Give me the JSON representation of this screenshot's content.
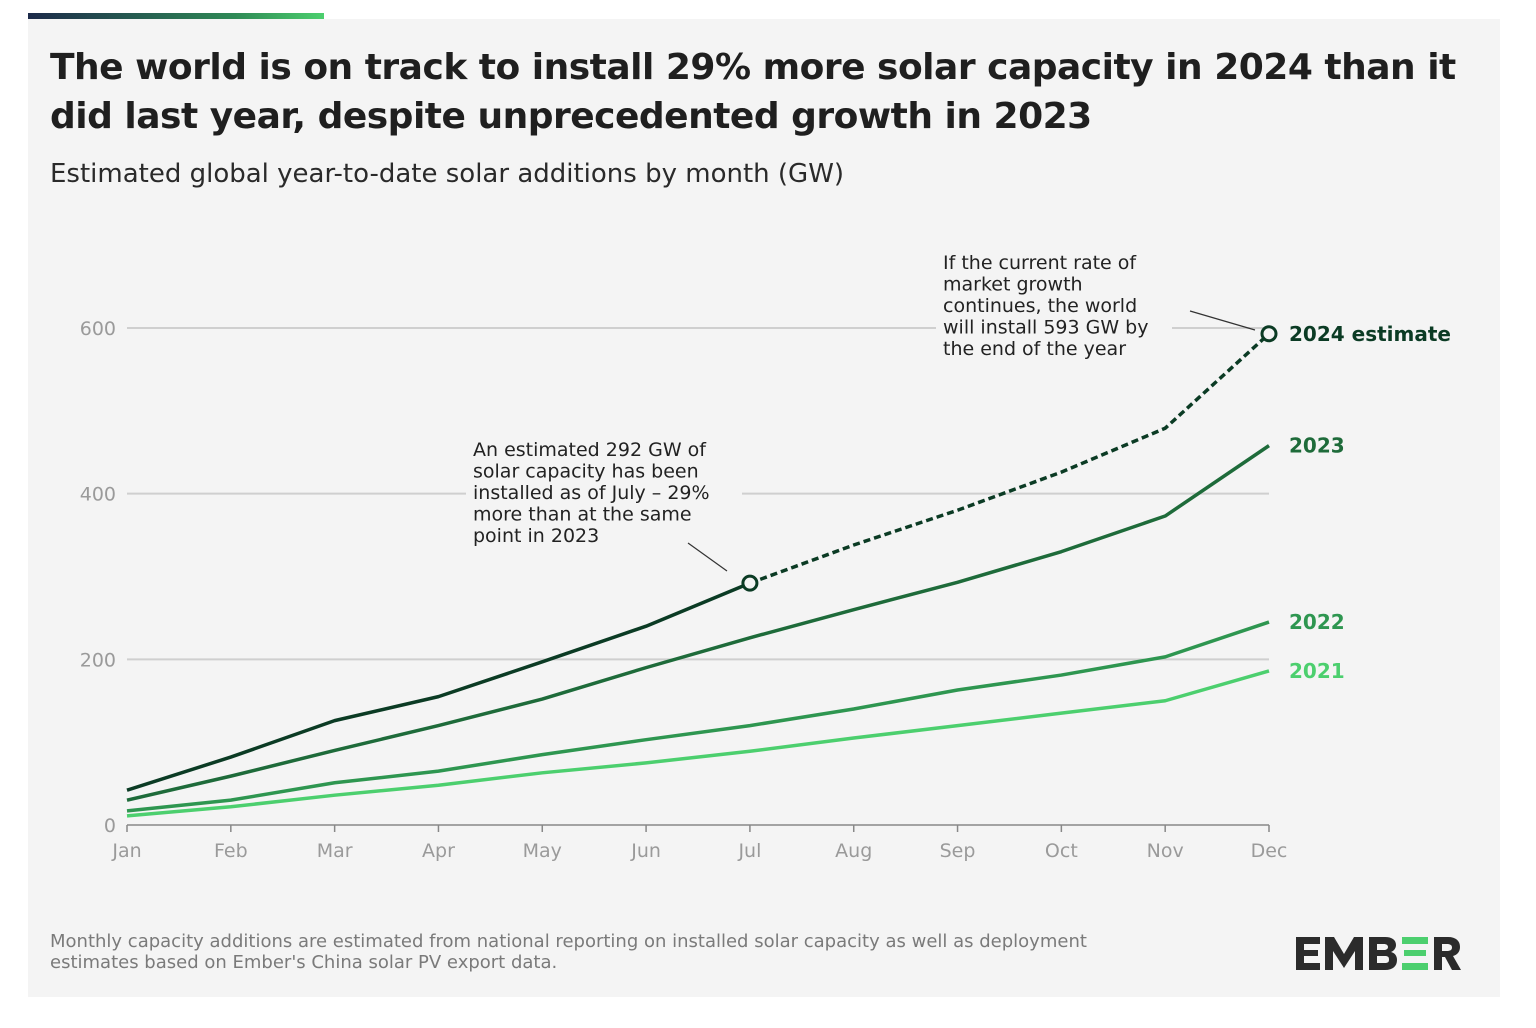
{
  "header": {
    "title": "The world is on track to install 29% more solar capacity in 2024 than it did last year, despite unprecedented growth in 2023",
    "subtitle": "Estimated global year-to-date solar additions by month (GW)"
  },
  "footnote": "Monthly capacity additions are estimated from national reporting on installed solar capacity as well as deployment estimates based on Ember's China solar PV export data.",
  "logo": {
    "text": "EMBER",
    "colors": {
      "text": "#2b2b2b",
      "accent": "#4ccf6e"
    }
  },
  "chart_data": {
    "type": "line",
    "title": "The world is on track to install 29% more solar capacity in 2024 than it did last year, despite unprecedented growth in 2023",
    "subtitle": "Estimated global year-to-date solar additions by month (GW)",
    "categories": [
      "Jan",
      "Feb",
      "Mar",
      "Apr",
      "May",
      "Jun",
      "Jul",
      "Aug",
      "Sep",
      "Oct",
      "Nov",
      "Dec"
    ],
    "ylim": [
      0,
      600
    ],
    "yticks": [
      0,
      200,
      400,
      600
    ],
    "grid": true,
    "legend": "inline-right",
    "series": [
      {
        "name": "2021",
        "color": "#4ccf6e",
        "values": [
          11,
          22,
          36,
          48,
          63,
          75,
          89,
          105,
          120,
          135,
          150,
          186
        ]
      },
      {
        "name": "2022",
        "color": "#2e9650",
        "values": [
          17,
          30,
          51,
          65,
          85,
          103,
          120,
          140,
          163,
          181,
          203,
          245
        ]
      },
      {
        "name": "2023",
        "color": "#1e6b3a",
        "values": [
          30,
          59,
          90,
          120,
          152,
          190,
          226,
          260,
          293,
          330,
          373,
          458
        ]
      },
      {
        "name": "2024 estimate",
        "color": "#0b3b24",
        "values": [
          42,
          82,
          126,
          155,
          197,
          240,
          292,
          338,
          380,
          426,
          479,
          593
        ],
        "dashed_from": "Jul"
      }
    ],
    "annotations": [
      {
        "text": [
          "An estimated 292 GW of",
          "solar capacity has been",
          "installed as of July – 29%",
          "more than at the same",
          "point in 2023"
        ],
        "at": "Jul",
        "value": 292
      },
      {
        "text": [
          "If the current rate of",
          "market growth",
          "continues, the world",
          "will install 593 GW by",
          "the end of the year"
        ],
        "at": "Dec",
        "value": 593
      }
    ]
  }
}
